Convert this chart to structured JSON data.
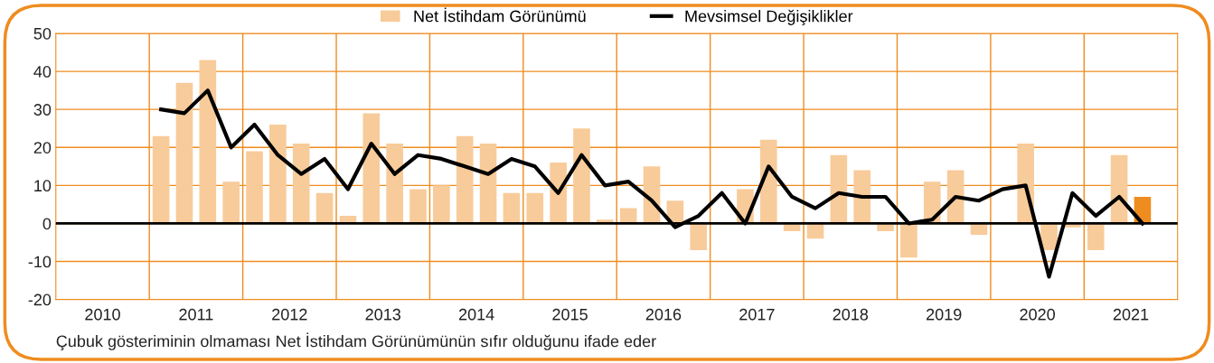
{
  "chart_data": {
    "type": "bar",
    "legend": "top",
    "x": [
      2010.625,
      2010.875,
      2011.125,
      2011.375,
      2011.625,
      2011.875,
      2012.125,
      2012.375,
      2012.625,
      2012.875,
      2013.125,
      2013.375,
      2013.625,
      2013.875,
      2014.125,
      2014.375,
      2014.625,
      2014.875,
      2015.125,
      2015.375,
      2015.625,
      2015.875,
      2016.125,
      2016.375,
      2016.625,
      2016.875,
      2017.125,
      2017.375,
      2017.625,
      2017.875,
      2018.125,
      2018.375,
      2018.625,
      2018.875,
      2019.125,
      2019.375,
      2019.625,
      2019.875,
      2020.125,
      2020.375,
      2020.625,
      2020.875,
      2021.125
    ],
    "series": [
      {
        "name": "Net İstihdam Görünümü",
        "color": "#f8cb9a",
        "colors": [
          "#f8cb9a",
          "#f8cb9a",
          "#f8cb9a",
          "#f8cb9a",
          "#f8cb9a",
          "#f8cb9a",
          "#f8cb9a",
          "#f8cb9a",
          "#f8cb9a",
          "#f8cb9a",
          "#f8cb9a",
          "#f8cb9a",
          "#f8cb9a",
          "#f8cb9a",
          "#f8cb9a",
          "#f8cb9a",
          "#f8cb9a",
          "#f8cb9a",
          "#f8cb9a",
          "#f8cb9a",
          "#f8cb9a",
          "#f8cb9a",
          "#f8cb9a",
          "#f8cb9a",
          "#f8cb9a",
          "#f8cb9a",
          "#f8cb9a",
          "#f8cb9a",
          "#f8cb9a",
          "#f8cb9a",
          "#f8cb9a",
          "#f8cb9a",
          "#f8cb9a",
          "#f8cb9a",
          "#f8cb9a",
          "#f8cb9a",
          "#f8cb9a",
          "#f8cb9a",
          "#f8cb9a",
          "#f8cb9a",
          "#f8cb9a",
          "#f8cb9a",
          "#ef8c1f"
        ],
        "values": [
          23,
          37,
          43,
          11,
          19,
          26,
          21,
          8,
          2,
          29,
          21,
          9,
          10,
          23,
          21,
          8,
          8,
          16,
          25,
          1,
          4,
          15,
          6,
          -7,
          0,
          9,
          22,
          -2,
          -4,
          18,
          14,
          -2,
          -9,
          11,
          14,
          -3,
          0,
          21,
          -7,
          -1,
          -7,
          18,
          7
        ]
      },
      {
        "name": "Mevsimsel Değişiklikler",
        "type": "line",
        "color": "#000000",
        "values": [
          30,
          29,
          35,
          20,
          26,
          18,
          13,
          17,
          9,
          21,
          13,
          18,
          17,
          15,
          13,
          17,
          15,
          8,
          18,
          10,
          11,
          6,
          -1,
          2,
          8,
          0,
          15,
          7,
          4,
          8,
          7,
          7,
          0,
          1,
          7,
          6,
          9,
          10,
          -14,
          8,
          2,
          7,
          0
        ]
      }
    ],
    "xlim": [
      2009.5,
      2021.5
    ],
    "xticks": [
      2010,
      2011,
      2012,
      2013,
      2014,
      2015,
      2016,
      2017,
      2018,
      2019,
      2020,
      2021
    ],
    "ylim": [
      -20,
      50
    ],
    "yticks": [
      -20,
      -10,
      0,
      10,
      20,
      30,
      40,
      50
    ],
    "grid": true,
    "ref_lines": [
      {
        "axis": "y",
        "value": 0,
        "color": "#000000"
      }
    ],
    "annotations": [
      "Çubuk gösteriminin olmaması Net İstihdam Görünümünün sıfır olduğunu ifade eder"
    ]
  }
}
